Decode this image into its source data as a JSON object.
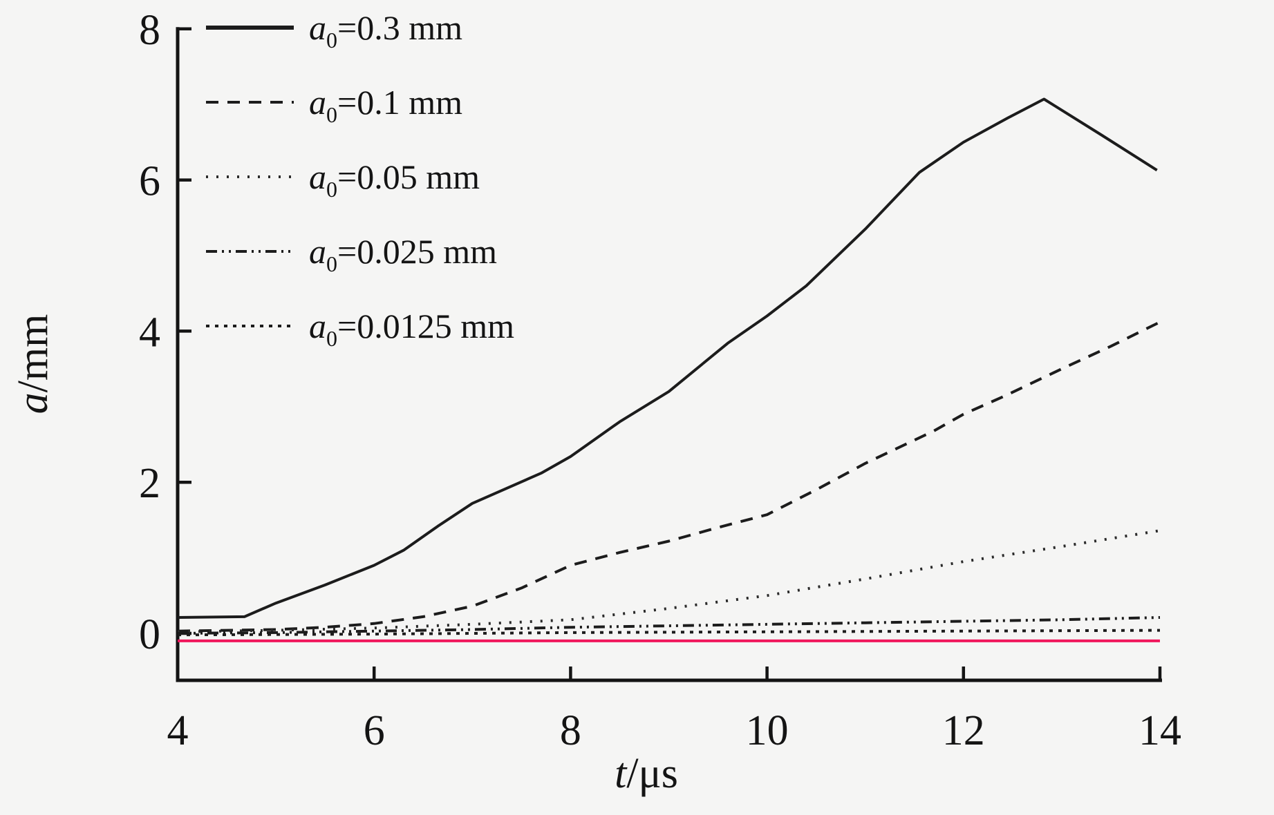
{
  "page": {
    "background": "#f5f5f4"
  },
  "chart_data": {
    "type": "line",
    "title": "",
    "xlabel": "t/μs",
    "xlabel_parts": {
      "italic": "t",
      "rest": "/μs"
    },
    "ylabel": "a/mm",
    "ylabel_parts": {
      "italic": "a",
      "rest": "/mm"
    },
    "xlim": [
      4,
      14
    ],
    "ylim": [
      -0.62,
      8
    ],
    "x_ticks": [
      4,
      6,
      8,
      10,
      12,
      14
    ],
    "y_ticks": [
      0,
      2,
      4,
      6,
      8
    ],
    "grid": false,
    "legend_position": "top-left",
    "axis_color": "#141414",
    "series": [
      {
        "name": "a0=0.3 mm",
        "label": {
          "var": "a",
          "sub": "0",
          "eq": "=",
          "value": "0.3",
          "unit": " mm"
        },
        "style": "solid",
        "color": "#1c1c1c",
        "in_legend": true,
        "points": [
          [
            4,
            0.21
          ],
          [
            4.68,
            0.22
          ],
          [
            5,
            0.4
          ],
          [
            5.5,
            0.64
          ],
          [
            6,
            0.9
          ],
          [
            6.3,
            1.1
          ],
          [
            6.65,
            1.42
          ],
          [
            7,
            1.72
          ],
          [
            7.7,
            2.12
          ],
          [
            8,
            2.34
          ],
          [
            8.5,
            2.8
          ],
          [
            9,
            3.2
          ],
          [
            9.6,
            3.84
          ],
          [
            10,
            4.2
          ],
          [
            10.4,
            4.6
          ],
          [
            11,
            5.35
          ],
          [
            11.55,
            6.1
          ],
          [
            12,
            6.5
          ],
          [
            12.45,
            6.82
          ],
          [
            12.82,
            7.07
          ],
          [
            13.4,
            6.6
          ],
          [
            13.97,
            6.13
          ]
        ]
      },
      {
        "name": "a0=0.1 mm",
        "label": {
          "var": "a",
          "sub": "0",
          "eq": "=",
          "value": "0.1",
          "unit": " mm"
        },
        "style": "dashed",
        "color": "#1c1c1c",
        "in_legend": true,
        "points": [
          [
            4,
            0.03
          ],
          [
            5,
            0.05
          ],
          [
            5.5,
            0.08
          ],
          [
            6,
            0.13
          ],
          [
            6.5,
            0.22
          ],
          [
            7,
            0.36
          ],
          [
            7.5,
            0.6
          ],
          [
            8,
            0.9
          ],
          [
            8.5,
            1.07
          ],
          [
            9,
            1.22
          ],
          [
            9.5,
            1.4
          ],
          [
            10,
            1.57
          ],
          [
            10.5,
            1.9
          ],
          [
            11,
            2.25
          ],
          [
            11.7,
            2.68
          ],
          [
            12,
            2.9
          ],
          [
            12.4,
            3.13
          ],
          [
            13,
            3.5
          ],
          [
            13.5,
            3.8
          ],
          [
            14,
            4.12
          ]
        ]
      },
      {
        "name": "a0=0.05 mm",
        "label": {
          "var": "a",
          "sub": "0",
          "eq": "=",
          "value": "0.05",
          "unit": " mm"
        },
        "style": "dotted",
        "color": "#2a2a2a",
        "in_legend": true,
        "points": [
          [
            4,
            0.02
          ],
          [
            5,
            0.04
          ],
          [
            6,
            0.07
          ],
          [
            7,
            0.12
          ],
          [
            8,
            0.18
          ],
          [
            9,
            0.33
          ],
          [
            10,
            0.5
          ],
          [
            11,
            0.72
          ],
          [
            12,
            0.95
          ],
          [
            13,
            1.15
          ],
          [
            14,
            1.36
          ]
        ]
      },
      {
        "name": "a0=0.025 mm",
        "label": {
          "var": "a",
          "sub": "0",
          "eq": "=",
          "value": "0.025",
          "unit": " mm"
        },
        "style": "dashdotdot",
        "color": "#1c1c1c",
        "in_legend": true,
        "points": [
          [
            4,
            0.0
          ],
          [
            5,
            0.01
          ],
          [
            6,
            0.03
          ],
          [
            7,
            0.05
          ],
          [
            8,
            0.08
          ],
          [
            9,
            0.1
          ],
          [
            10,
            0.12
          ],
          [
            11,
            0.14
          ],
          [
            12,
            0.16
          ],
          [
            13,
            0.18
          ],
          [
            14,
            0.21
          ]
        ]
      },
      {
        "name": "a0=0.0125 mm",
        "label": {
          "var": "a",
          "sub": "0",
          "eq": "=",
          "value": "0.0125",
          "unit": " mm"
        },
        "style": "densedot",
        "color": "#1c1c1c",
        "in_legend": true,
        "points": [
          [
            4,
            -0.02
          ],
          [
            6,
            -0.01
          ],
          [
            8,
            0.01
          ],
          [
            10,
            0.02
          ],
          [
            12,
            0.03
          ],
          [
            14,
            0.04
          ]
        ]
      },
      {
        "name": "reference line (unlabeled)",
        "label": null,
        "style": "solid",
        "color": "#f0175c",
        "in_legend": false,
        "points": [
          [
            4,
            -0.1
          ],
          [
            14,
            -0.1
          ]
        ]
      }
    ]
  }
}
